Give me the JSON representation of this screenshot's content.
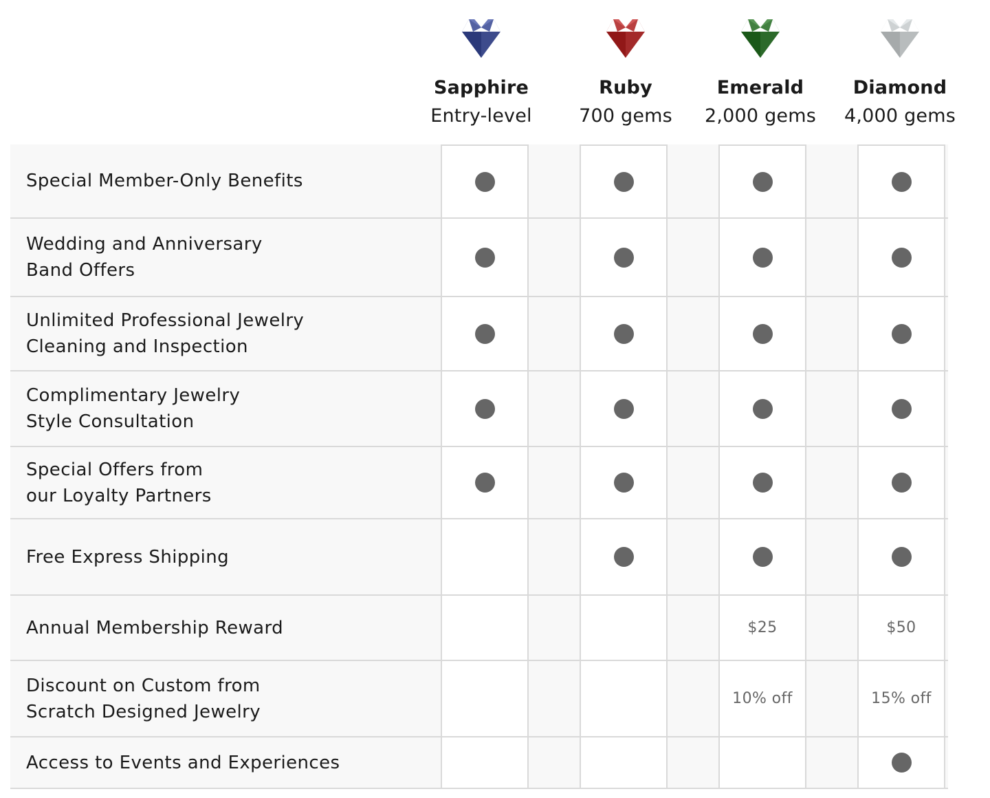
{
  "tiers": [
    {
      "name": "Sapphire",
      "subtitle": "Entry-level",
      "icon": "sapphire-gem-icon",
      "color": "#3d4b8c"
    },
    {
      "name": "Ruby",
      "subtitle": "700 gems",
      "icon": "ruby-gem-icon",
      "color": "#a32a2a"
    },
    {
      "name": "Emerald",
      "subtitle": "2,000 gems",
      "icon": "emerald-gem-icon",
      "color": "#2c6a2a"
    },
    {
      "name": "Diamond",
      "subtitle": "4,000 gems",
      "icon": "diamond-gem-icon",
      "color": "#b8bcbd"
    }
  ],
  "dot_color": "#666666",
  "benefits": [
    {
      "label_lines": [
        "Special Member-Only Benefits"
      ],
      "cells": [
        "dot",
        "dot",
        "dot",
        "dot"
      ]
    },
    {
      "label_lines": [
        "Wedding and Anniversary",
        "Band Offers"
      ],
      "cells": [
        "dot",
        "dot",
        "dot",
        "dot"
      ]
    },
    {
      "label_lines": [
        "Unlimited Professional Jewelry",
        "Cleaning and Inspection"
      ],
      "cells": [
        "dot",
        "dot",
        "dot",
        "dot"
      ]
    },
    {
      "label_lines": [
        "Complimentary Jewelry",
        "Style Consultation"
      ],
      "cells": [
        "dot",
        "dot",
        "dot",
        "dot"
      ]
    },
    {
      "label_lines": [
        "Special Offers from",
        "our Loyalty Partners"
      ],
      "cells": [
        "dot",
        "dot",
        "dot",
        "dot"
      ]
    },
    {
      "label_lines": [
        "Free Express Shipping"
      ],
      "cells": [
        "",
        "dot",
        "dot",
        "dot"
      ]
    },
    {
      "label_lines": [
        "Annual Membership Reward"
      ],
      "cells": [
        "",
        "",
        "$25",
        "$50"
      ]
    },
    {
      "label_lines": [
        "Discount on Custom from",
        "Scratch Designed Jewelry"
      ],
      "cells": [
        "",
        "",
        "10% off",
        "15% off"
      ]
    },
    {
      "label_lines": [
        "Access to Events and Experiences"
      ],
      "cells": [
        "",
        "",
        "",
        "dot"
      ]
    }
  ]
}
